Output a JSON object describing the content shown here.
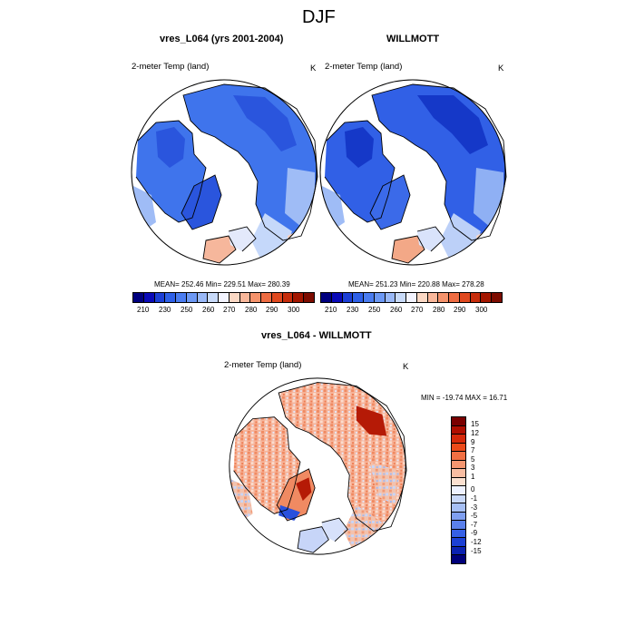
{
  "main_title": "DJF",
  "panels": [
    {
      "title": "vres_L064 (yrs 2001-2004)",
      "variable_label": "2-meter Temp (land)",
      "units": "K",
      "stats": "MEAN= 252.46  Min= 229.51  Max= 280.39"
    },
    {
      "title": "WILLMOTT",
      "variable_label": "2-meter Temp (land)",
      "units": "K",
      "stats": "MEAN= 251.23  Min= 220.88  Max= 278.28"
    }
  ],
  "diff_panel": {
    "title": "vres_L064 - WILLMOTT",
    "variable_label": "2-meter Temp (land)",
    "units": "K",
    "stats": "MIN = -19.74 MAX =  16.71"
  },
  "abs_colorbar": {
    "colors": [
      "#00007f",
      "#0a0ab8",
      "#1c3fd6",
      "#2e60e8",
      "#4a7cf0",
      "#6c98f4",
      "#99b8f7",
      "#c8daf9",
      "#f3f4ff",
      "#fbd8c4",
      "#f9b79a",
      "#f5936c",
      "#ee6c42",
      "#e0491f",
      "#c72d0c",
      "#a31600",
      "#7d0c00"
    ],
    "labels": [
      "210",
      "230",
      "250",
      "260",
      "270",
      "280",
      "290",
      "300"
    ]
  },
  "diff_colorbar": {
    "colors": [
      "#7a0000",
      "#b00e00",
      "#d6290a",
      "#ec4a1a",
      "#f26f42",
      "#f59670",
      "#f8bda2",
      "#fbe0d0",
      "#eef2ff",
      "#c9d8f8",
      "#a6bff4",
      "#7f9ff0",
      "#5a80ec",
      "#3560e6",
      "#1b40d4",
      "#0b22b0",
      "#00007a"
    ],
    "labels": [
      "15",
      "12",
      "9",
      "7",
      "5",
      "3",
      "1",
      "0",
      "-1",
      "-3",
      "-5",
      "-7",
      "-9",
      "-12",
      "-15"
    ]
  }
}
